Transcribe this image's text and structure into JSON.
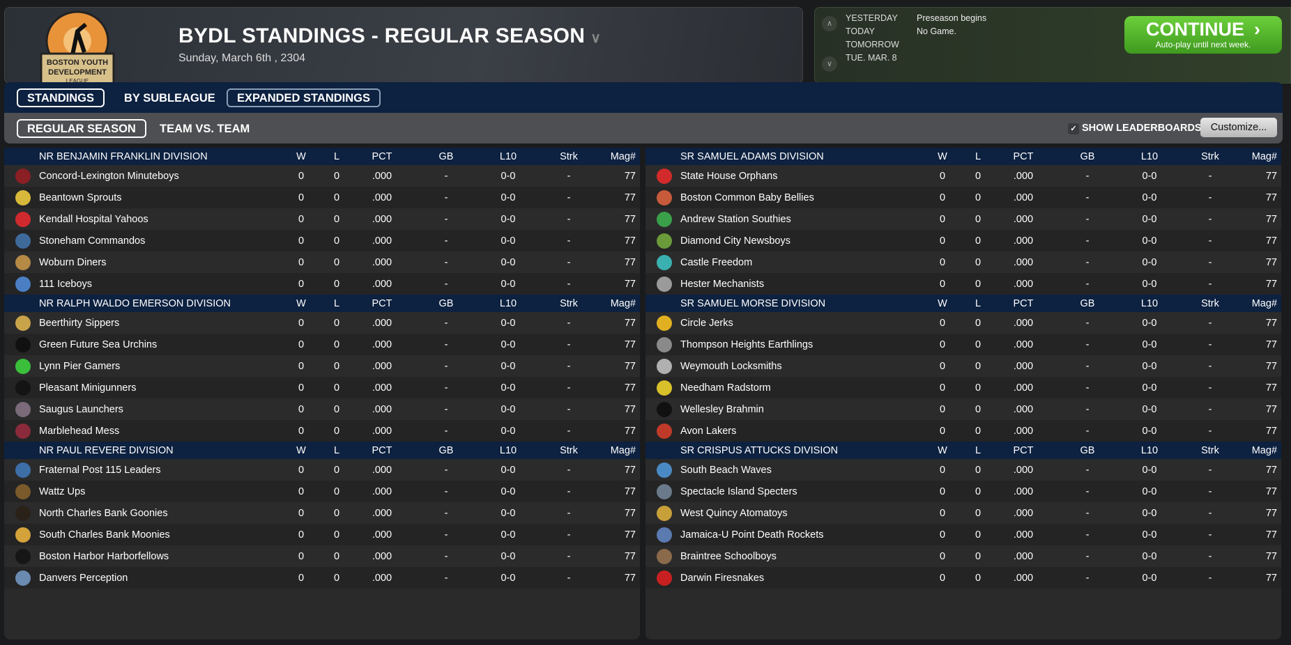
{
  "header": {
    "title": "BYDL STANDINGS - REGULAR SEASON",
    "date": "Sunday, March 6th , 2304",
    "logo_text": "BOSTON YOUTH DEVELOPMENT LEAGUE"
  },
  "calendar": {
    "rows": [
      {
        "label": "YESTERDAY",
        "value": "Preseason begins"
      },
      {
        "label": "TODAY",
        "value": "No Game."
      },
      {
        "label": "TOMORROW",
        "value": ""
      },
      {
        "label": "TUE. MAR. 8",
        "value": ""
      }
    ],
    "continue_label": "CONTINUE",
    "continue_sub": "Auto-play until next week."
  },
  "tabs": [
    "STANDINGS",
    "BY SUBLEAGUE",
    "EXPANDED STANDINGS"
  ],
  "subtabs": [
    "REGULAR SEASON",
    "TEAM VS. TEAM"
  ],
  "show_leaderboards": "SHOW LEADERBOARDS",
  "customize": "Customize...",
  "columns": [
    "W",
    "L",
    "PCT",
    "GB",
    "L10",
    "Strk",
    "Mag#"
  ],
  "left": [
    {
      "name": "NR BENJAMIN FRANKLIN DIVISION",
      "teams": [
        {
          "team": "Concord-Lexington Minuteboys",
          "color": "#8a1f24",
          "stats": [
            "0",
            "0",
            ".000",
            "-",
            "0-0",
            "-",
            "77"
          ]
        },
        {
          "team": "Beantown Sprouts",
          "color": "#d7b83a",
          "stats": [
            "0",
            "0",
            ".000",
            "-",
            "0-0",
            "-",
            "77"
          ]
        },
        {
          "team": "Kendall Hospital Yahoos",
          "color": "#d12a2e",
          "stats": [
            "0",
            "0",
            ".000",
            "-",
            "0-0",
            "-",
            "77"
          ]
        },
        {
          "team": "Stoneham Commandos",
          "color": "#3e6a9a",
          "stats": [
            "0",
            "0",
            ".000",
            "-",
            "0-0",
            "-",
            "77"
          ]
        },
        {
          "team": "Woburn Diners",
          "color": "#b48a45",
          "stats": [
            "0",
            "0",
            ".000",
            "-",
            "0-0",
            "-",
            "77"
          ]
        },
        {
          "team": "111 Iceboys",
          "color": "#4a7fc4",
          "stats": [
            "0",
            "0",
            ".000",
            "-",
            "0-0",
            "-",
            "77"
          ]
        }
      ]
    },
    {
      "name": "NR RALPH WALDO EMERSON DIVISION",
      "teams": [
        {
          "team": "Beerthirty Sippers",
          "color": "#c9a34a",
          "stats": [
            "0",
            "0",
            ".000",
            "-",
            "0-0",
            "-",
            "77"
          ]
        },
        {
          "team": "Green Future Sea Urchins",
          "color": "#111111",
          "stats": [
            "0",
            "0",
            ".000",
            "-",
            "0-0",
            "-",
            "77"
          ]
        },
        {
          "team": "Lynn Pier Gamers",
          "color": "#3bbf3b",
          "stats": [
            "0",
            "0",
            ".000",
            "-",
            "0-0",
            "-",
            "77"
          ]
        },
        {
          "team": "Pleasant Minigunners",
          "color": "#141414",
          "stats": [
            "0",
            "0",
            ".000",
            "-",
            "0-0",
            "-",
            "77"
          ]
        },
        {
          "team": "Saugus Launchers",
          "color": "#7a6a7a",
          "stats": [
            "0",
            "0",
            ".000",
            "-",
            "0-0",
            "-",
            "77"
          ]
        },
        {
          "team": "Marblehead Mess",
          "color": "#8a2a3a",
          "stats": [
            "0",
            "0",
            ".000",
            "-",
            "0-0",
            "-",
            "77"
          ]
        }
      ]
    },
    {
      "name": "NR PAUL REVERE DIVISION",
      "teams": [
        {
          "team": "Fraternal Post 115 Leaders",
          "color": "#3d6ea8",
          "stats": [
            "0",
            "0",
            ".000",
            "-",
            "0-0",
            "-",
            "77"
          ]
        },
        {
          "team": "Wattz Ups",
          "color": "#7a5a2a",
          "stats": [
            "0",
            "0",
            ".000",
            "-",
            "0-0",
            "-",
            "77"
          ]
        },
        {
          "team": "North Charles Bank Goonies",
          "color": "#2a2218",
          "stats": [
            "0",
            "0",
            ".000",
            "-",
            "0-0",
            "-",
            "77"
          ]
        },
        {
          "team": "South Charles Bank Moonies",
          "color": "#d4a23a",
          "stats": [
            "0",
            "0",
            ".000",
            "-",
            "0-0",
            "-",
            "77"
          ]
        },
        {
          "team": "Boston Harbor Harborfellows",
          "color": "#161616",
          "stats": [
            "0",
            "0",
            ".000",
            "-",
            "0-0",
            "-",
            "77"
          ]
        },
        {
          "team": "Danvers Perception",
          "color": "#6a8ab0",
          "stats": [
            "0",
            "0",
            ".000",
            "-",
            "0-0",
            "-",
            "77"
          ]
        }
      ]
    }
  ],
  "right": [
    {
      "name": "SR SAMUEL ADAMS DIVISION",
      "teams": [
        {
          "team": "State House Orphans",
          "color": "#d22a2a",
          "stats": [
            "0",
            "0",
            ".000",
            "-",
            "0-0",
            "-",
            "77"
          ]
        },
        {
          "team": "Boston Common Baby Bellies",
          "color": "#c65a3a",
          "stats": [
            "0",
            "0",
            ".000",
            "-",
            "0-0",
            "-",
            "77"
          ]
        },
        {
          "team": "Andrew Station Southies",
          "color": "#3aa04a",
          "stats": [
            "0",
            "0",
            ".000",
            "-",
            "0-0",
            "-",
            "77"
          ]
        },
        {
          "team": "Diamond City Newsboys",
          "color": "#6a9a3a",
          "stats": [
            "0",
            "0",
            ".000",
            "-",
            "0-0",
            "-",
            "77"
          ]
        },
        {
          "team": "Castle Freedom",
          "color": "#3ab0b0",
          "stats": [
            "0",
            "0",
            ".000",
            "-",
            "0-0",
            "-",
            "77"
          ]
        },
        {
          "team": "Hester Mechanists",
          "color": "#9a9a9a",
          "stats": [
            "0",
            "0",
            ".000",
            "-",
            "0-0",
            "-",
            "77"
          ]
        }
      ]
    },
    {
      "name": "SR SAMUEL MORSE DIVISION",
      "teams": [
        {
          "team": "Circle Jerks",
          "color": "#e0b020",
          "stats": [
            "0",
            "0",
            ".000",
            "-",
            "0-0",
            "-",
            "77"
          ]
        },
        {
          "team": "Thompson Heights Earthlings",
          "color": "#8a8a8a",
          "stats": [
            "0",
            "0",
            ".000",
            "-",
            "0-0",
            "-",
            "77"
          ]
        },
        {
          "team": "Weymouth Locksmiths",
          "color": "#b0b0b0",
          "stats": [
            "0",
            "0",
            ".000",
            "-",
            "0-0",
            "-",
            "77"
          ]
        },
        {
          "team": "Needham Radstorm",
          "color": "#d8c02a",
          "stats": [
            "0",
            "0",
            ".000",
            "-",
            "0-0",
            "-",
            "77"
          ]
        },
        {
          "team": "Wellesley Brahmin",
          "color": "#111111",
          "stats": [
            "0",
            "0",
            ".000",
            "-",
            "0-0",
            "-",
            "77"
          ]
        },
        {
          "team": "Avon Lakers",
          "color": "#c03a2a",
          "stats": [
            "0",
            "0",
            ".000",
            "-",
            "0-0",
            "-",
            "77"
          ]
        }
      ]
    },
    {
      "name": "SR CRISPUS ATTUCKS DIVISION",
      "teams": [
        {
          "team": "South Beach Waves",
          "color": "#4a8ac4",
          "stats": [
            "0",
            "0",
            ".000",
            "-",
            "0-0",
            "-",
            "77"
          ]
        },
        {
          "team": "Spectacle Island Specters",
          "color": "#6a7a8a",
          "stats": [
            "0",
            "0",
            ".000",
            "-",
            "0-0",
            "-",
            "77"
          ]
        },
        {
          "team": "West Quincy Atomatoys",
          "color": "#c8a03a",
          "stats": [
            "0",
            "0",
            ".000",
            "-",
            "0-0",
            "-",
            "77"
          ]
        },
        {
          "team": "Jamaica-U Point Death Rockets",
          "color": "#5a7ab0",
          "stats": [
            "0",
            "0",
            ".000",
            "-",
            "0-0",
            "-",
            "77"
          ]
        },
        {
          "team": "Braintree Schoolboys",
          "color": "#8a6a4a",
          "stats": [
            "0",
            "0",
            ".000",
            "-",
            "0-0",
            "-",
            "77"
          ]
        },
        {
          "team": "Darwin Firesnakes",
          "color": "#c82020",
          "stats": [
            "0",
            "0",
            ".000",
            "-",
            "0-0",
            "-",
            "77"
          ]
        }
      ]
    }
  ]
}
